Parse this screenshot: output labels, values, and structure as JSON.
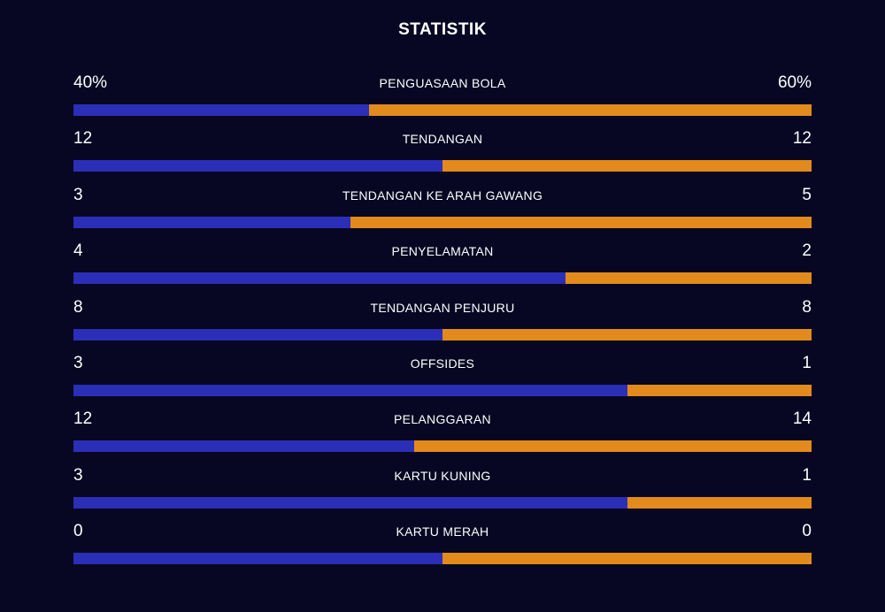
{
  "header": {
    "title": "STATISTIK"
  },
  "colors": {
    "background": "#070723",
    "home_bar": "#2b2fb8",
    "away_bar": "#e38a1d"
  },
  "stats": [
    {
      "label": "PENGUASAAN BOLA",
      "home": "40%",
      "away": "60%",
      "home_share": 0.4
    },
    {
      "label": "TENDANGAN",
      "home": "12",
      "away": "12",
      "home_share": 0.5
    },
    {
      "label": "TENDANGAN KE ARAH GAWANG",
      "home": "3",
      "away": "5",
      "home_share": 0.375
    },
    {
      "label": "PENYELAMATAN",
      "home": "4",
      "away": "2",
      "home_share": 0.6667
    },
    {
      "label": "TENDANGAN PENJURU",
      "home": "8",
      "away": "8",
      "home_share": 0.5
    },
    {
      "label": "OFFSIDES",
      "home": "3",
      "away": "1",
      "home_share": 0.75
    },
    {
      "label": "PELANGGARAN",
      "home": "12",
      "away": "14",
      "home_share": 0.4615
    },
    {
      "label": "KARTU KUNING",
      "home": "3",
      "away": "1",
      "home_share": 0.75
    },
    {
      "label": "KARTU MERAH",
      "home": "0",
      "away": "0",
      "home_share": 0.5
    }
  ]
}
